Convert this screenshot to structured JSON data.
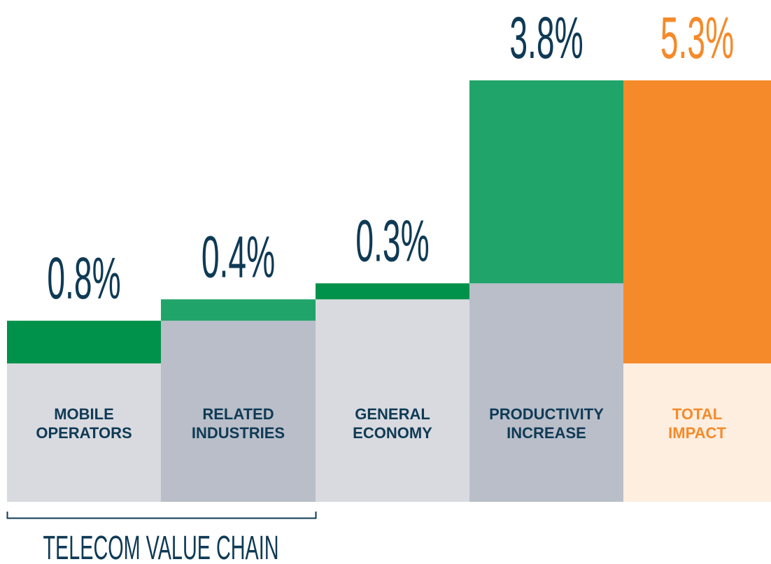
{
  "chart_data": {
    "type": "waterfall",
    "categories": [
      "MOBILE OPERATORS",
      "RELATED INDUSTRIES",
      "GENERAL ECONOMY",
      "PRODUCTIVITY INCREASE",
      "TOTAL IMPACT"
    ],
    "values": [
      0.8,
      0.4,
      0.3,
      3.8,
      5.3
    ],
    "value_labels": [
      "0.8%",
      "0.4%",
      "0.3%",
      "3.8%",
      "5.3%"
    ],
    "total": [
      false,
      false,
      false,
      false,
      true
    ],
    "colors": [
      "#00924a",
      "#20a469",
      "#00924a",
      "#20a469",
      "#f58a2a"
    ],
    "base_colors": [
      "#d9dadf",
      "#b9bec9",
      "#d9dadf",
      "#b9bec9",
      "#fdeee0"
    ],
    "label_colors": [
      "#0f3a55",
      "#0f3a55",
      "#0f3a55",
      "#0f3a55",
      "#f58a2a"
    ],
    "annotation": "TELECOM VALUE CHAIN"
  }
}
